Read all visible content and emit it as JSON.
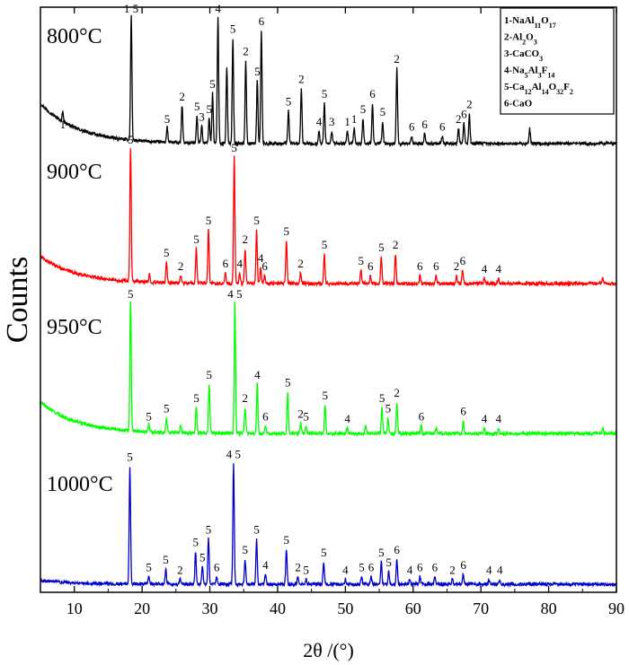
{
  "chart_data": {
    "type": "line",
    "title": "",
    "xlabel": "2θ /(°)",
    "ylabel": "Counts",
    "xlim": [
      5,
      90
    ],
    "xticks": [
      10,
      20,
      30,
      40,
      50,
      60,
      70,
      80,
      90
    ],
    "yticks": "none",
    "grid": false,
    "legend_position": "top-right",
    "legend": [
      {
        "id": "1",
        "text": "1-NaAl11O17",
        "main": "1-NaAl",
        "sub": "11",
        "tail": "O",
        "sub2": "17"
      },
      {
        "id": "2",
        "text": "2-Al2O3",
        "main": "2-Al",
        "sub": "2",
        "tail": "O",
        "sub2": "3"
      },
      {
        "id": "3",
        "text": "3-CaCO3",
        "main": "3-CaCO",
        "sub": "3",
        "tail": "",
        "sub2": ""
      },
      {
        "id": "4",
        "text": "4-Na5Al3F14",
        "main": "4-Na",
        "sub": "5",
        "tail": "Al",
        "sub2": "3",
        "tail2": "F",
        "sub3": "14"
      },
      {
        "id": "5",
        "text": "5-Ca12Al14O32F2",
        "main": "5-Ca",
        "sub": "12",
        "tail": "Al",
        "sub2": "14",
        "tail2": "O",
        "sub3": "32",
        "tail3": "F",
        "sub4": "2"
      },
      {
        "id": "6",
        "text": "6-CaO",
        "main": "6-CaO",
        "sub": "",
        "tail": "",
        "sub2": ""
      }
    ],
    "series": [
      {
        "name": "800°C",
        "color": "#000000",
        "baseline_intensity": 5.2,
        "background_rise": 1.6,
        "peaks": [
          {
            "x": 8.3,
            "h": 0.4,
            "label": "1"
          },
          {
            "x": 18.4,
            "h": 5.0,
            "label": "1 5"
          },
          {
            "x": 23.7,
            "h": 0.6,
            "label": "5"
          },
          {
            "x": 25.9,
            "h": 1.5,
            "label": "2"
          },
          {
            "x": 28.1,
            "h": 1.1,
            "label": "5"
          },
          {
            "x": 28.8,
            "h": 0.7,
            "label": "3"
          },
          {
            "x": 29.9,
            "h": 1.0,
            "label": "5"
          },
          {
            "x": 30.4,
            "h": 2.0,
            "label": "5"
          },
          {
            "x": 31.2,
            "h": 5.0,
            "label": "4"
          },
          {
            "x": 32.5,
            "h": 3.0,
            "label": ""
          },
          {
            "x": 33.4,
            "h": 4.2,
            "label": "5"
          },
          {
            "x": 35.3,
            "h": 3.3,
            "label": "2"
          },
          {
            "x": 37.0,
            "h": 2.5,
            "label": "5"
          },
          {
            "x": 37.6,
            "h": 4.5,
            "label": "6"
          },
          {
            "x": 41.6,
            "h": 1.3,
            "label": "5"
          },
          {
            "x": 43.5,
            "h": 2.2,
            "label": "2"
          },
          {
            "x": 46.1,
            "h": 0.5,
            "label": "4"
          },
          {
            "x": 46.9,
            "h": 1.6,
            "label": "5"
          },
          {
            "x": 48.0,
            "h": 0.5,
            "label": "3"
          },
          {
            "x": 50.3,
            "h": 0.5,
            "label": "1"
          },
          {
            "x": 51.3,
            "h": 0.6,
            "label": "1"
          },
          {
            "x": 52.6,
            "h": 1.0,
            "label": "5"
          },
          {
            "x": 54.0,
            "h": 1.6,
            "label": "6"
          },
          {
            "x": 55.5,
            "h": 0.9,
            "label": "5"
          },
          {
            "x": 57.6,
            "h": 3.0,
            "label": "2"
          },
          {
            "x": 59.8,
            "h": 0.3,
            "label": "6"
          },
          {
            "x": 61.7,
            "h": 0.4,
            "label": "6"
          },
          {
            "x": 64.3,
            "h": 0.3,
            "label": "6"
          },
          {
            "x": 66.7,
            "h": 0.6,
            "label": "2"
          },
          {
            "x": 67.5,
            "h": 0.8,
            "label": "6"
          },
          {
            "x": 68.3,
            "h": 1.2,
            "label": "2"
          },
          {
            "x": 77.2,
            "h": 0.6,
            "label": ""
          }
        ]
      },
      {
        "name": "900°C",
        "color": "#ff0000",
        "baseline_intensity": 2.1,
        "background_rise": 1.0,
        "peaks": [
          {
            "x": 18.3,
            "h": 5.0,
            "label": "5"
          },
          {
            "x": 21.1,
            "h": 0.3,
            "label": ""
          },
          {
            "x": 23.6,
            "h": 0.8,
            "label": "5"
          },
          {
            "x": 25.7,
            "h": 0.3,
            "label": "2"
          },
          {
            "x": 28.0,
            "h": 1.3,
            "label": "5"
          },
          {
            "x": 29.8,
            "h": 2.0,
            "label": "5"
          },
          {
            "x": 32.3,
            "h": 0.4,
            "label": "6"
          },
          {
            "x": 33.6,
            "h": 4.7,
            "label": "5"
          },
          {
            "x": 34.4,
            "h": 0.4,
            "label": "4"
          },
          {
            "x": 35.2,
            "h": 1.3,
            "label": "2"
          },
          {
            "x": 36.9,
            "h": 2.0,
            "label": "5"
          },
          {
            "x": 37.5,
            "h": 0.6,
            "label": "4"
          },
          {
            "x": 38.1,
            "h": 0.3,
            "label": "6"
          },
          {
            "x": 41.3,
            "h": 1.6,
            "label": "5"
          },
          {
            "x": 43.4,
            "h": 0.4,
            "label": "2"
          },
          {
            "x": 46.9,
            "h": 1.1,
            "label": "5"
          },
          {
            "x": 52.3,
            "h": 0.5,
            "label": "5"
          },
          {
            "x": 53.7,
            "h": 0.3,
            "label": "6"
          },
          {
            "x": 55.3,
            "h": 1.0,
            "label": "5"
          },
          {
            "x": 57.4,
            "h": 1.1,
            "label": "2"
          },
          {
            "x": 61.0,
            "h": 0.3,
            "label": "6"
          },
          {
            "x": 63.4,
            "h": 0.3,
            "label": "6"
          },
          {
            "x": 66.4,
            "h": 0.3,
            "label": "2"
          },
          {
            "x": 67.3,
            "h": 0.5,
            "label": "6"
          },
          {
            "x": 70.5,
            "h": 0.2,
            "label": "4"
          },
          {
            "x": 72.6,
            "h": 0.2,
            "label": "4"
          },
          {
            "x": 88.0,
            "h": 0.2,
            "label": ""
          }
        ]
      },
      {
        "name": "950°C",
        "color": "#00ff00",
        "baseline_intensity": 2.1,
        "background_rise": 1.2,
        "peaks": [
          {
            "x": 18.3,
            "h": 5.0,
            "label": "5"
          },
          {
            "x": 21.0,
            "h": 0.3,
            "label": "5"
          },
          {
            "x": 23.6,
            "h": 0.6,
            "label": "5"
          },
          {
            "x": 25.7,
            "h": 0.3,
            "label": ""
          },
          {
            "x": 28.0,
            "h": 1.0,
            "label": "5"
          },
          {
            "x": 29.9,
            "h": 1.9,
            "label": "5"
          },
          {
            "x": 33.7,
            "h": 5.0,
            "label": "4 5"
          },
          {
            "x": 35.2,
            "h": 1.0,
            "label": "2"
          },
          {
            "x": 37.0,
            "h": 1.9,
            "label": "4"
          },
          {
            "x": 38.2,
            "h": 0.3,
            "label": "6"
          },
          {
            "x": 41.5,
            "h": 1.6,
            "label": "5"
          },
          {
            "x": 43.4,
            "h": 0.4,
            "label": "2"
          },
          {
            "x": 44.2,
            "h": 0.3,
            "label": "5"
          },
          {
            "x": 47.0,
            "h": 1.1,
            "label": "5"
          },
          {
            "x": 50.3,
            "h": 0.2,
            "label": "4"
          },
          {
            "x": 53.0,
            "h": 0.3,
            "label": ""
          },
          {
            "x": 55.4,
            "h": 1.0,
            "label": "5"
          },
          {
            "x": 56.3,
            "h": 0.6,
            "label": "5"
          },
          {
            "x": 57.6,
            "h": 1.2,
            "label": "2"
          },
          {
            "x": 61.2,
            "h": 0.3,
            "label": "6"
          },
          {
            "x": 63.4,
            "h": 0.2,
            "label": ""
          },
          {
            "x": 67.4,
            "h": 0.5,
            "label": "6"
          },
          {
            "x": 70.5,
            "h": 0.2,
            "label": "4"
          },
          {
            "x": 72.6,
            "h": 0.2,
            "label": "4"
          },
          {
            "x": 88.0,
            "h": 0.2,
            "label": ""
          }
        ]
      },
      {
        "name": "1000°C",
        "color": "#0000cc",
        "baseline_intensity": 1.2,
        "background_rise": 0.15,
        "peaks": [
          {
            "x": 18.2,
            "h": 4.7,
            "label": "5"
          },
          {
            "x": 21.0,
            "h": 0.3,
            "label": "5"
          },
          {
            "x": 23.5,
            "h": 0.6,
            "label": "5"
          },
          {
            "x": 25.6,
            "h": 0.2,
            "label": "2"
          },
          {
            "x": 27.9,
            "h": 1.3,
            "label": "5"
          },
          {
            "x": 28.9,
            "h": 0.7,
            "label": "5"
          },
          {
            "x": 29.8,
            "h": 1.8,
            "label": "5"
          },
          {
            "x": 31.0,
            "h": 0.3,
            "label": "6"
          },
          {
            "x": 33.5,
            "h": 4.8,
            "label": "4 5"
          },
          {
            "x": 35.2,
            "h": 1.0,
            "label": "5"
          },
          {
            "x": 36.9,
            "h": 1.8,
            "label": "5"
          },
          {
            "x": 38.2,
            "h": 0.4,
            "label": "4"
          },
          {
            "x": 41.3,
            "h": 1.4,
            "label": "5"
          },
          {
            "x": 43.0,
            "h": 0.3,
            "label": "2"
          },
          {
            "x": 44.2,
            "h": 0.2,
            "label": "5"
          },
          {
            "x": 46.8,
            "h": 0.9,
            "label": "5"
          },
          {
            "x": 50.0,
            "h": 0.2,
            "label": "4"
          },
          {
            "x": 52.4,
            "h": 0.3,
            "label": "5"
          },
          {
            "x": 53.8,
            "h": 0.3,
            "label": "6"
          },
          {
            "x": 55.3,
            "h": 0.9,
            "label": "5"
          },
          {
            "x": 56.4,
            "h": 0.5,
            "label": "5"
          },
          {
            "x": 57.6,
            "h": 1.0,
            "label": "6"
          },
          {
            "x": 59.5,
            "h": 0.2,
            "label": "4"
          },
          {
            "x": 61.0,
            "h": 0.3,
            "label": "6"
          },
          {
            "x": 63.2,
            "h": 0.3,
            "label": "6"
          },
          {
            "x": 65.8,
            "h": 0.2,
            "label": "2"
          },
          {
            "x": 67.4,
            "h": 0.4,
            "label": "6"
          },
          {
            "x": 71.2,
            "h": 0.2,
            "label": "4"
          },
          {
            "x": 72.8,
            "h": 0.2,
            "label": "4"
          }
        ]
      }
    ]
  }
}
